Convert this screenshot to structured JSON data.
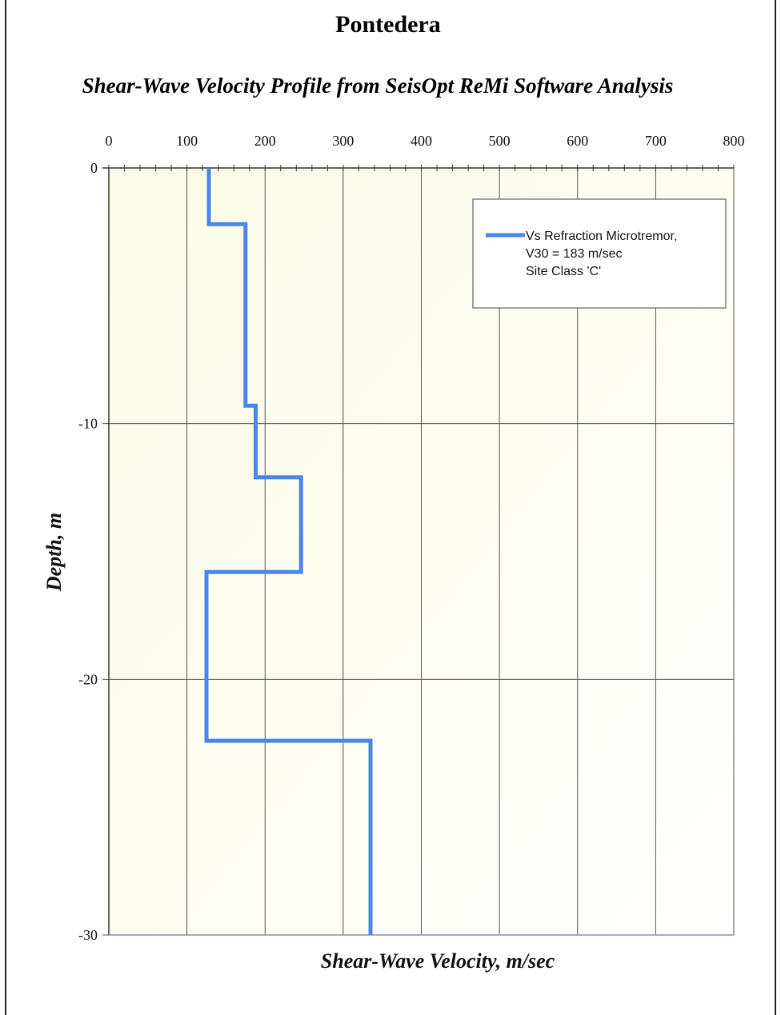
{
  "chart_data": {
    "type": "line",
    "title": "Pontedera",
    "subtitle": "Shear-Wave Velocity Profile from SeisOpt ReMi Software Analysis",
    "xlabel": "Shear-Wave Velocity, m/sec",
    "ylabel": "Depth, m",
    "xlim": [
      0,
      800
    ],
    "ylim": [
      -30,
      0
    ],
    "x_ticks": [
      "0",
      "100",
      "200",
      "300",
      "400",
      "500",
      "600",
      "700",
      "800"
    ],
    "y_ticks": [
      "0",
      "-10",
      "-20",
      "-30"
    ],
    "x_axis_position": "top",
    "grid": true,
    "legend_position": "top-right",
    "series": [
      {
        "name": "Vs Refraction Microtremor,",
        "color": "#4a86e8",
        "points": [
          [
            128,
            0
          ],
          [
            128,
            -2.2
          ],
          [
            175,
            -2.2
          ],
          [
            175,
            -9.3
          ],
          [
            188,
            -9.3
          ],
          [
            188,
            -12.1
          ],
          [
            246,
            -12.1
          ],
          [
            246,
            -15.8
          ],
          [
            125,
            -15.8
          ],
          [
            125,
            -22.4
          ],
          [
            335,
            -22.4
          ],
          [
            335,
            -30
          ]
        ]
      }
    ],
    "legend_lines": [
      "Vs Refraction Microtremor,",
      "V30 = 183 m/sec",
      "Site Class 'C'"
    ]
  }
}
